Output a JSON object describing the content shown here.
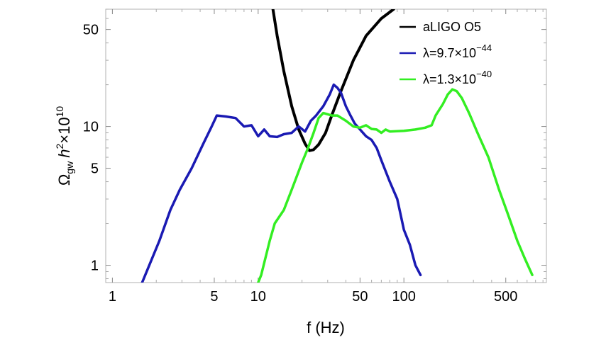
{
  "chart_data": {
    "type": "line",
    "xscale": "log",
    "yscale": "log",
    "xlim": [
      0.9,
      950
    ],
    "ylim": [
      0.75,
      70
    ],
    "xlabel": "f (Hz)",
    "ylabel": {
      "omega": "Ω",
      "omega_sub": "gw",
      "h": "h",
      "h_sup": "2",
      "times": "×10",
      "exp": "10"
    },
    "x_ticks_major": [
      {
        "value": 1,
        "label": "1"
      },
      {
        "value": 5,
        "label": "5"
      },
      {
        "value": 10,
        "label": "10"
      },
      {
        "value": 50,
        "label": "50"
      },
      {
        "value": 100,
        "label": "100"
      },
      {
        "value": 500,
        "label": "500"
      }
    ],
    "x_ticks_minor": [
      2,
      3,
      4,
      6,
      7,
      8,
      9,
      20,
      30,
      40,
      60,
      70,
      80,
      90,
      200,
      300,
      400,
      600,
      700,
      800,
      900
    ],
    "y_ticks_major": [
      {
        "value": 1,
        "label": "1"
      },
      {
        "value": 5,
        "label": "5"
      },
      {
        "value": 10,
        "label": "10"
      },
      {
        "value": 50,
        "label": "50"
      }
    ],
    "y_ticks_minor": [
      0.8,
      0.9,
      2,
      3,
      4,
      6,
      7,
      8,
      9,
      20,
      30,
      40,
      60,
      70
    ],
    "grid": false,
    "legend_position": "top-right",
    "series": [
      {
        "name": "aLIGO O5",
        "color": "#000000",
        "points": [
          [
            12.5,
            75
          ],
          [
            13.5,
            45
          ],
          [
            15,
            25
          ],
          [
            17,
            14
          ],
          [
            19,
            9.5
          ],
          [
            21,
            7.5
          ],
          [
            22.5,
            6.7
          ],
          [
            24,
            6.8
          ],
          [
            26,
            7.4
          ],
          [
            29,
            9
          ],
          [
            32,
            12
          ],
          [
            37,
            18
          ],
          [
            45,
            30
          ],
          [
            55,
            45
          ],
          [
            70,
            60
          ],
          [
            85,
            70
          ]
        ]
      },
      {
        "name": "λ=9.7×10⁻⁴⁴",
        "legend_prefix": "λ=9.7×10",
        "legend_exp": "−44",
        "color": "#1a1ab3",
        "points": [
          [
            1.6,
            0.75
          ],
          [
            2.1,
            1.5
          ],
          [
            2.5,
            2.5
          ],
          [
            2.9,
            3.5
          ],
          [
            3.5,
            5
          ],
          [
            4.2,
            7.5
          ],
          [
            4.8,
            10
          ],
          [
            5.2,
            12
          ],
          [
            6,
            11.8
          ],
          [
            7,
            11.5
          ],
          [
            8,
            10
          ],
          [
            9,
            10.2
          ],
          [
            10,
            8.5
          ],
          [
            11,
            9.5
          ],
          [
            12,
            8.5
          ],
          [
            13.5,
            8.4
          ],
          [
            15,
            8.8
          ],
          [
            17,
            9
          ],
          [
            19,
            10
          ],
          [
            21,
            9.2
          ],
          [
            23,
            11
          ],
          [
            25,
            12
          ],
          [
            28,
            14
          ],
          [
            31,
            17
          ],
          [
            33,
            20
          ],
          [
            35,
            19
          ],
          [
            37,
            17.5
          ],
          [
            40,
            14
          ],
          [
            43,
            12
          ],
          [
            46,
            10.5
          ],
          [
            50,
            9.5
          ],
          [
            55,
            8.5
          ],
          [
            60,
            8
          ],
          [
            65,
            7
          ],
          [
            70,
            5.7
          ],
          [
            80,
            4
          ],
          [
            90,
            3
          ],
          [
            100,
            1.8
          ],
          [
            110,
            1.4
          ],
          [
            120,
            1
          ],
          [
            130,
            0.85
          ]
        ]
      },
      {
        "name": "λ=1.3×10⁻⁴⁰",
        "legend_prefix": "λ=1.3×10",
        "legend_exp": "−40",
        "color": "#33ee22",
        "points": [
          [
            10,
            0.75
          ],
          [
            10.5,
            0.85
          ],
          [
            12,
            1.5
          ],
          [
            13,
            2
          ],
          [
            15,
            2.5
          ],
          [
            17,
            3.5
          ],
          [
            20,
            5.5
          ],
          [
            22,
            7
          ],
          [
            24,
            9
          ],
          [
            26,
            11.5
          ],
          [
            28,
            12.5
          ],
          [
            32,
            12
          ],
          [
            35,
            12
          ],
          [
            40,
            11
          ],
          [
            45,
            10
          ],
          [
            50,
            9.8
          ],
          [
            55,
            10.2
          ],
          [
            60,
            9.6
          ],
          [
            65,
            9.5
          ],
          [
            70,
            9
          ],
          [
            75,
            9.5
          ],
          [
            80,
            9.2
          ],
          [
            100,
            9.3
          ],
          [
            120,
            9.5
          ],
          [
            140,
            9.8
          ],
          [
            155,
            10.2
          ],
          [
            165,
            12
          ],
          [
            185,
            14.5
          ],
          [
            200,
            17
          ],
          [
            215,
            18.5
          ],
          [
            230,
            18
          ],
          [
            250,
            16
          ],
          [
            280,
            12.5
          ],
          [
            320,
            9
          ],
          [
            380,
            6
          ],
          [
            450,
            3.5
          ],
          [
            520,
            2.3
          ],
          [
            600,
            1.5
          ],
          [
            680,
            1.1
          ],
          [
            760,
            0.85
          ]
        ]
      }
    ]
  }
}
